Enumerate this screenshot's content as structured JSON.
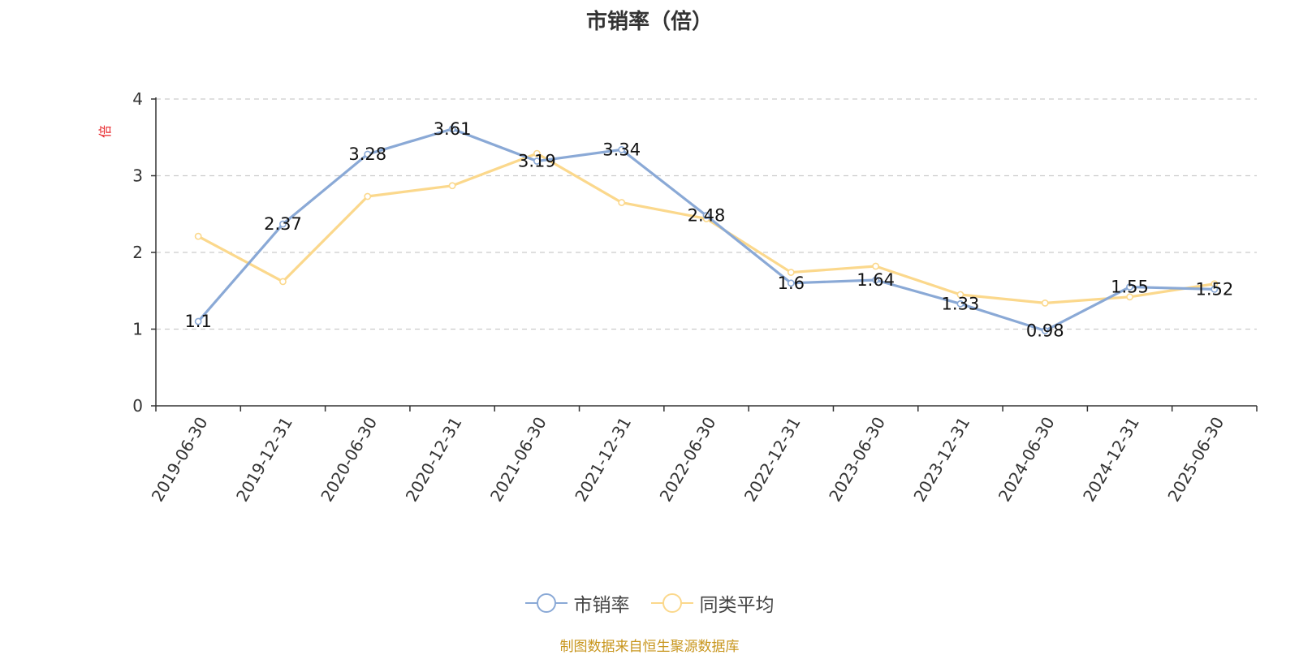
{
  "title": "市销率（倍）",
  "source": "制图数据来自恒生聚源数据库",
  "colors": {
    "series_0": "#8aa9d6",
    "series_1": "#fbd88c",
    "axis": "#333333",
    "grid": "#cccccc"
  },
  "chart_data": {
    "type": "line",
    "title": "市销率（倍）",
    "ylabel": "倍",
    "xlabel": "",
    "ylim": [
      0,
      4
    ],
    "yticks": [
      0,
      1,
      2,
      3,
      4
    ],
    "grid": true,
    "legend_position": "bottom",
    "categories": [
      "2019-06-30",
      "2019-12-31",
      "2020-06-30",
      "2020-12-31",
      "2021-06-30",
      "2021-12-31",
      "2022-06-30",
      "2022-12-31",
      "2023-06-30",
      "2023-12-31",
      "2024-06-30",
      "2024-12-31",
      "2025-06-30"
    ],
    "series": [
      {
        "name": "市销率",
        "values": [
          1.1,
          2.37,
          3.28,
          3.61,
          3.19,
          3.34,
          2.48,
          1.6,
          1.64,
          1.33,
          0.98,
          1.55,
          1.52
        ],
        "data_labels": true
      },
      {
        "name": "同类平均",
        "values": [
          2.21,
          1.62,
          2.73,
          2.87,
          3.29,
          2.65,
          2.44,
          1.74,
          1.82,
          1.45,
          1.34,
          1.42,
          1.59
        ],
        "data_labels": false
      }
    ]
  }
}
